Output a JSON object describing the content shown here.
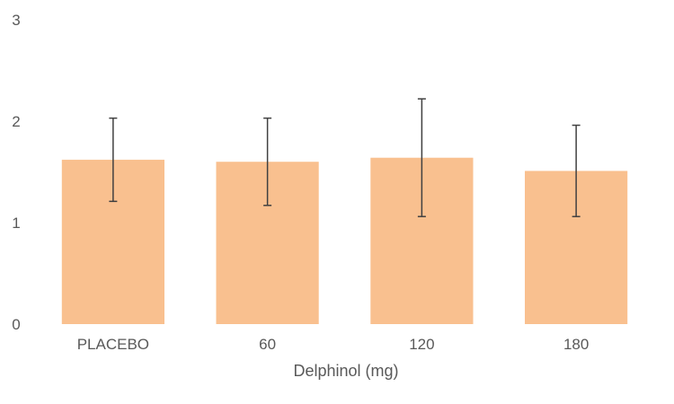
{
  "chart_data": {
    "type": "bar",
    "title": "",
    "xlabel": "Delphinol (mg)",
    "ylabel": "",
    "categories": [
      "PLACEBO",
      "60",
      "120",
      "180"
    ],
    "values": [
      1.62,
      1.6,
      1.64,
      1.51
    ],
    "error_low": [
      1.21,
      1.17,
      1.06,
      1.06
    ],
    "error_high": [
      2.03,
      2.03,
      2.22,
      1.96
    ],
    "ylim": [
      0,
      3
    ],
    "yticks": [
      "0",
      "1",
      "2",
      "3"
    ],
    "grid": false,
    "legend": "none",
    "bar_color": "#f9c08f",
    "error_color": "#404040"
  }
}
